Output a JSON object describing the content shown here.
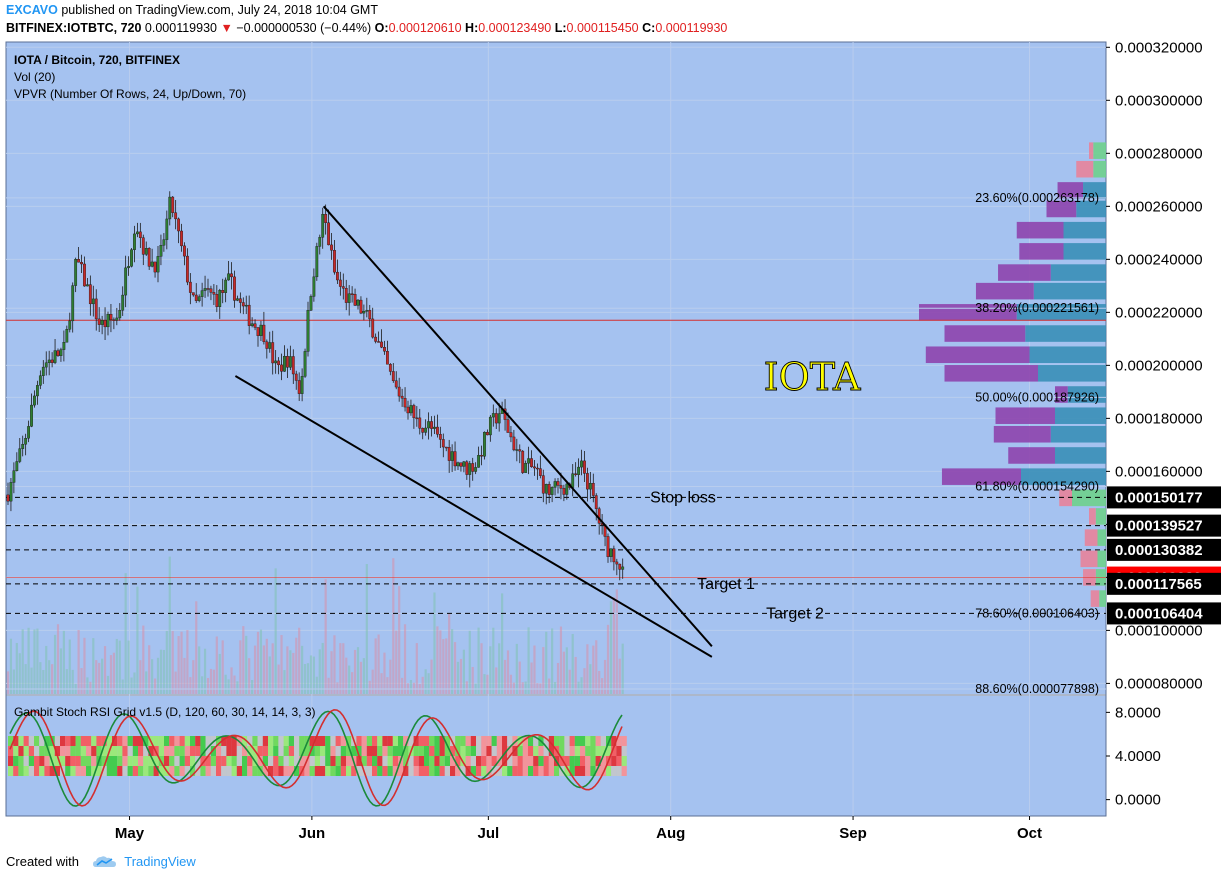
{
  "header": {
    "publisher": "EXCAVO",
    "published_text": "published on TradingView.com, July 24, 2018 10:04 GMT",
    "symbol": "BITFINEX:IOTBTC, 720",
    "last": "0.000119930",
    "change": "−0.000000530 (−0.44%)",
    "o_label": "O:",
    "o_value": "0.000120610",
    "h_label": "H:",
    "h_value": "0.000123490",
    "l_label": "L:",
    "l_value": "0.000115450",
    "c_label": "C:",
    "c_value": "0.000119930"
  },
  "legend": {
    "line1": "IOTA / Bitcoin, 720, BITFINEX",
    "line2": "Vol (20)",
    "line3": "VPVR (Number Of Rows, 24, Up/Down, 70)",
    "indicator": "Gambit Stoch RSI Grid v1.5 (D, 120, 60, 30, 14, 14, 3, 3)"
  },
  "footer": {
    "created_with": "Created with",
    "brand": "TradingView"
  },
  "colors": {
    "panel_bg": "#a5c2f0",
    "accent_brand": "#2196f3",
    "candle_up": "#2e7d32",
    "candle_down": "#c62828",
    "last_price": "#ff0000",
    "vpvr_up": "#3a8fb7",
    "vpvr_down": "#8e44ad",
    "annotation_text": "#ffff00"
  },
  "chart_data": {
    "type": "candlestick",
    "title": "IOTA",
    "symbol": "IOTBTC",
    "exchange": "BITFINEX",
    "interval": "720",
    "x_ticks": [
      "May",
      "Jun",
      "Jul",
      "Aug",
      "Sep",
      "Oct"
    ],
    "y_ticks": [
      "0.000080000",
      "0.000100000",
      "0.000120000",
      "0.000140000",
      "0.000160000",
      "0.000180000",
      "0.000200000",
      "0.000220000",
      "0.000240000",
      "0.000260000",
      "0.000280000",
      "0.000300000",
      "0.000320000"
    ],
    "ylim": [
      7.6e-05,
      0.000322
    ],
    "x_domain_days_label": "Apr 10 2018 – Oct 14 2018",
    "price_path": [
      {
        "date": "2018-04-10",
        "price": 0.00015
      },
      {
        "date": "2018-04-13",
        "price": 0.00017
      },
      {
        "date": "2018-04-16",
        "price": 0.0002
      },
      {
        "date": "2018-04-20",
        "price": 0.000206
      },
      {
        "date": "2018-04-22",
        "price": 0.00024
      },
      {
        "date": "2018-04-24",
        "price": 0.000228
      },
      {
        "date": "2018-04-26",
        "price": 0.000215
      },
      {
        "date": "2018-04-29",
        "price": 0.000218
      },
      {
        "date": "2018-05-02",
        "price": 0.000255
      },
      {
        "date": "2018-05-04",
        "price": 0.00024
      },
      {
        "date": "2018-05-06",
        "price": 0.000238
      },
      {
        "date": "2018-05-08",
        "price": 0.000262
      },
      {
        "date": "2018-05-10",
        "price": 0.000242
      },
      {
        "date": "2018-05-12",
        "price": 0.000222
      },
      {
        "date": "2018-05-14",
        "price": 0.000228
      },
      {
        "date": "2018-05-16",
        "price": 0.000225
      },
      {
        "date": "2018-05-18",
        "price": 0.000232
      },
      {
        "date": "2018-05-20",
        "price": 0.000222
      },
      {
        "date": "2018-05-22",
        "price": 0.000216
      },
      {
        "date": "2018-05-24",
        "price": 0.000212
      },
      {
        "date": "2018-05-26",
        "price": 0.000198
      },
      {
        "date": "2018-05-28",
        "price": 0.000203
      },
      {
        "date": "2018-05-30",
        "price": 0.00019
      },
      {
        "date": "2018-06-01",
        "price": 0.000232
      },
      {
        "date": "2018-06-03",
        "price": 0.000257
      },
      {
        "date": "2018-06-05",
        "price": 0.000233
      },
      {
        "date": "2018-06-07",
        "price": 0.000225
      },
      {
        "date": "2018-06-09",
        "price": 0.000222
      },
      {
        "date": "2018-06-11",
        "price": 0.000216
      },
      {
        "date": "2018-06-13",
        "price": 0.000204
      },
      {
        "date": "2018-06-15",
        "price": 0.000192
      },
      {
        "date": "2018-06-17",
        "price": 0.000186
      },
      {
        "date": "2018-06-19",
        "price": 0.000178
      },
      {
        "date": "2018-06-21",
        "price": 0.000177
      },
      {
        "date": "2018-06-23",
        "price": 0.00017
      },
      {
        "date": "2018-06-25",
        "price": 0.000166
      },
      {
        "date": "2018-06-27",
        "price": 0.000161
      },
      {
        "date": "2018-06-29",
        "price": 0.000163
      },
      {
        "date": "2018-07-01",
        "price": 0.000176
      },
      {
        "date": "2018-07-03",
        "price": 0.000183
      },
      {
        "date": "2018-07-05",
        "price": 0.000172
      },
      {
        "date": "2018-07-07",
        "price": 0.000162
      },
      {
        "date": "2018-07-09",
        "price": 0.000161
      },
      {
        "date": "2018-07-11",
        "price": 0.000152
      },
      {
        "date": "2018-07-13",
        "price": 0.000154
      },
      {
        "date": "2018-07-15",
        "price": 0.000155
      },
      {
        "date": "2018-07-17",
        "price": 0.000162
      },
      {
        "date": "2018-07-19",
        "price": 0.000148
      },
      {
        "date": "2018-07-21",
        "price": 0.000132
      },
      {
        "date": "2018-07-23",
        "price": 0.000127
      },
      {
        "date": "2018-07-24",
        "price": 0.00012
      }
    ],
    "volume_note": "volume bars shown in lower part of price pane",
    "horizontal_levels": [
      {
        "label": "Stop loss",
        "price": 0.000150177
      },
      {
        "label": "",
        "price": 0.000139527
      },
      {
        "label": "",
        "price": 0.000130382
      },
      {
        "label": "Target 1",
        "price": 0.000117565
      },
      {
        "label": "Target 2",
        "price": 0.000106404
      }
    ],
    "price_badges": [
      {
        "value": "0.000150177",
        "color": "#000000"
      },
      {
        "value": "0.000139527",
        "color": "#000000"
      },
      {
        "value": "0.000130382",
        "color": "#000000"
      },
      {
        "value": "0.000119930",
        "color": "#ff0000"
      },
      {
        "value": "0.000117565",
        "color": "#000000"
      },
      {
        "value": "0.000106404",
        "color": "#000000"
      }
    ],
    "red_horizontal_line": 0.000217,
    "fibonacci": [
      {
        "label": "23.60%(0.000263178)",
        "price": 0.000263178
      },
      {
        "label": "38.20%(0.000221561)",
        "price": 0.000221561
      },
      {
        "label": "50.00%(0.000187926)",
        "price": 0.000187926
      },
      {
        "label": "61.80%(0.000154290)",
        "price": 0.00015429
      },
      {
        "label": "78.60%(0.000106403)",
        "price": 0.000106403
      },
      {
        "label": "88.60%(0.000077898)",
        "price": 7.7898e-05
      }
    ],
    "wedge_upper": {
      "from": {
        "date": "2018-06-03",
        "price": 0.00026
      },
      "to": {
        "date": "2018-08-08",
        "price": 9.4e-05
      }
    },
    "wedge_lower": {
      "from": {
        "date": "2018-05-19",
        "price": 0.000196
      },
      "to": {
        "date": "2018-08-08",
        "price": 9e-05
      }
    },
    "vpvr_rows": [
      {
        "price": 0.000281,
        "up": 0.15,
        "down": 0.05
      },
      {
        "price": 0.000274,
        "up": 0.15,
        "down": 0.2
      },
      {
        "price": 0.000266,
        "up": 0.27,
        "down": 0.3
      },
      {
        "price": 0.000259,
        "up": 0.35,
        "down": 0.35
      },
      {
        "price": 0.000251,
        "up": 0.5,
        "down": 0.55
      },
      {
        "price": 0.000243,
        "up": 0.5,
        "down": 0.52
      },
      {
        "price": 0.000235,
        "up": 0.65,
        "down": 0.62
      },
      {
        "price": 0.000228,
        "up": 0.85,
        "down": 0.68
      },
      {
        "price": 0.00022,
        "up": 1.05,
        "down": 1.15
      },
      {
        "price": 0.000212,
        "up": 0.95,
        "down": 0.95
      },
      {
        "price": 0.000204,
        "up": 0.9,
        "down": 1.22
      },
      {
        "price": 0.000197,
        "up": 0.8,
        "down": 1.1
      },
      {
        "price": 0.000189,
        "up": 0.45,
        "down": 0.15
      },
      {
        "price": 0.000181,
        "up": 0.6,
        "down": 0.7
      },
      {
        "price": 0.000174,
        "up": 0.65,
        "down": 0.67
      },
      {
        "price": 0.000166,
        "up": 0.6,
        "down": 0.55
      },
      {
        "price": 0.000158,
        "up": 1.0,
        "down": 0.93
      },
      {
        "price": 0.00015,
        "up": 0.4,
        "down": 0.15
      },
      {
        "price": 0.000143,
        "up": 0.12,
        "down": 0.08
      },
      {
        "price": 0.000135,
        "up": 0.1,
        "down": 0.15
      },
      {
        "price": 0.000127,
        "up": 0.1,
        "down": 0.2
      },
      {
        "price": 0.00012,
        "up": 0.12,
        "down": 0.15
      },
      {
        "price": 0.000112,
        "up": 0.08,
        "down": 0.1
      }
    ],
    "indicator_y_ticks": [
      "8.0000",
      "4.0000",
      "0.0000"
    ],
    "indicator_ylim": [
      -1.5,
      9.5
    ]
  }
}
